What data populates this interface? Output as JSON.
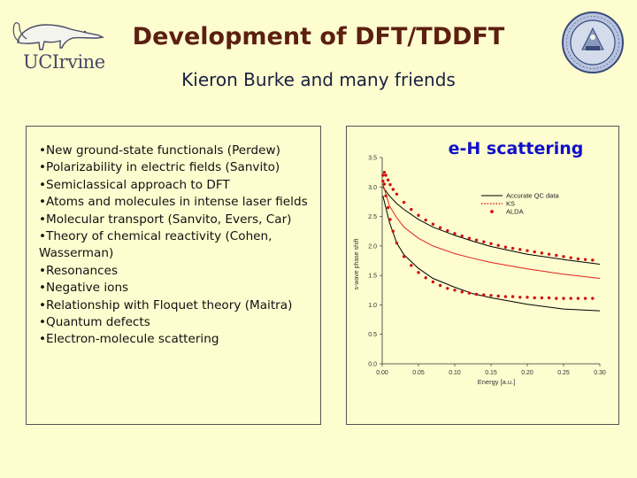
{
  "header": {
    "title": "Development of DFT/TDDFT",
    "subtitle": "Kieron Burke and many friends",
    "logo_text": "UCIrvine",
    "seal_icon": "university-of-california-seal-icon"
  },
  "bullets": [
    "•New ground-state functionals (Perdew)",
    "•Polarizability in electric fields (Sanvito)",
    "•Semiclassical approach to DFT",
    "•Atoms and molecules in intense laser fields",
    "•Molecular transport (Sanvito, Evers, Car)",
    "•Theory of chemical reactivity (Cohen, Wasserman)",
    "•Resonances",
    "•Negative ions",
    "•Relationship with Floquet theory (Maitra)",
    "•Quantum defects",
    "•Electron-molecule scattering"
  ],
  "colors": {
    "background": "#fdfdd0",
    "title": "#5c1f10",
    "chart_title": "#1010c8",
    "accurate": "#000000",
    "ks": "#e0201c",
    "alda": "#d01010"
  },
  "chart_data": {
    "type": "line",
    "title": "e-H scattering",
    "xlabel": "Energy [a.u.]",
    "ylabel": "s-wave phase shift",
    "xlim": [
      0.0,
      0.3
    ],
    "ylim": [
      0.0,
      3.5
    ],
    "xticks": [
      "0.00",
      "0.05",
      "0.10",
      "0.15",
      "0.20",
      "0.25",
      "0.30"
    ],
    "yticks": [
      "0.0",
      "0.5",
      "1.0",
      "1.5",
      "2.0",
      "2.5",
      "3.0",
      "3.5"
    ],
    "legend_position": "top-right",
    "grid": false,
    "series": [
      {
        "name": "Accurate QC data",
        "style": "solid",
        "color": "#000000",
        "x": [
          0.001,
          0.01,
          0.02,
          0.03,
          0.05,
          0.07,
          0.1,
          0.125,
          0.15,
          0.2,
          0.25,
          0.3
        ],
        "y": [
          3.0,
          2.85,
          2.72,
          2.62,
          2.45,
          2.32,
          2.18,
          2.08,
          1.99,
          1.86,
          1.77,
          1.69
        ]
      },
      {
        "name": "Accurate QC data",
        "style": "solid",
        "color": "#000000",
        "x": [
          0.001,
          0.01,
          0.02,
          0.03,
          0.05,
          0.07,
          0.1,
          0.125,
          0.15,
          0.2,
          0.25,
          0.3
        ],
        "y": [
          2.85,
          2.4,
          2.05,
          1.85,
          1.62,
          1.45,
          1.3,
          1.19,
          1.12,
          1.01,
          0.93,
          0.9
        ]
      },
      {
        "name": "KS",
        "style": "solid",
        "color": "#e0201c",
        "x": [
          0.001,
          0.01,
          0.02,
          0.03,
          0.05,
          0.07,
          0.1,
          0.125,
          0.15,
          0.2,
          0.25,
          0.3
        ],
        "y": [
          3.05,
          2.68,
          2.48,
          2.32,
          2.13,
          2.0,
          1.87,
          1.79,
          1.72,
          1.61,
          1.52,
          1.45
        ]
      },
      {
        "name": "ALDA",
        "style": "dots",
        "color": "#d01010",
        "x": [
          0.001,
          0.003,
          0.005,
          0.008,
          0.011,
          0.015,
          0.02,
          0.03,
          0.04,
          0.05,
          0.06,
          0.07,
          0.08,
          0.09,
          0.1,
          0.11,
          0.12,
          0.13,
          0.14,
          0.15,
          0.16,
          0.17,
          0.18,
          0.19,
          0.2,
          0.21,
          0.22,
          0.23,
          0.24,
          0.25,
          0.26,
          0.27,
          0.28,
          0.29
        ],
        "y": [
          3.2,
          3.25,
          3.2,
          3.12,
          3.04,
          2.96,
          2.88,
          2.74,
          2.62,
          2.52,
          2.44,
          2.37,
          2.31,
          2.26,
          2.21,
          2.17,
          2.13,
          2.1,
          2.07,
          2.04,
          2.01,
          1.98,
          1.96,
          1.94,
          1.92,
          1.9,
          1.88,
          1.86,
          1.84,
          1.82,
          1.8,
          1.78,
          1.77,
          1.76
        ]
      },
      {
        "name": "ALDA",
        "style": "dots",
        "color": "#d01010",
        "x": [
          0.001,
          0.003,
          0.005,
          0.008,
          0.011,
          0.015,
          0.02,
          0.03,
          0.04,
          0.05,
          0.06,
          0.07,
          0.08,
          0.09,
          0.1,
          0.11,
          0.12,
          0.13,
          0.14,
          0.15,
          0.16,
          0.17,
          0.18,
          0.19,
          0.2,
          0.21,
          0.22,
          0.23,
          0.24,
          0.25,
          0.26,
          0.27,
          0.28,
          0.29
        ],
        "y": [
          3.1,
          3.05,
          2.85,
          2.65,
          2.45,
          2.25,
          2.05,
          1.82,
          1.67,
          1.55,
          1.46,
          1.39,
          1.33,
          1.28,
          1.25,
          1.22,
          1.2,
          1.18,
          1.17,
          1.16,
          1.15,
          1.14,
          1.14,
          1.13,
          1.13,
          1.12,
          1.12,
          1.12,
          1.11,
          1.11,
          1.11,
          1.11,
          1.11,
          1.11
        ]
      }
    ],
    "legend": [
      {
        "label": "Accurate QC data",
        "style": "solid",
        "color": "#000000"
      },
      {
        "label": "KS",
        "style": "dashed-dots",
        "color": "#e0201c"
      },
      {
        "label": "ALDA",
        "style": "dot",
        "color": "#d01010"
      }
    ]
  }
}
